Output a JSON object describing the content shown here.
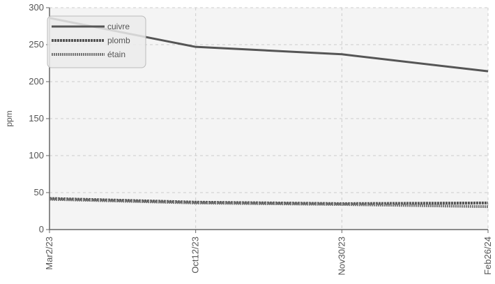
{
  "chart_data": {
    "type": "line",
    "title": "",
    "xlabel": "",
    "ylabel": "ppm",
    "ylim": [
      0,
      300
    ],
    "yticks": [
      "0",
      "50",
      "100",
      "150",
      "200",
      "250",
      "300"
    ],
    "categories": [
      "Mar2/23",
      "Oct12/23",
      "Nov30/23",
      "Feb26/24"
    ],
    "grid": true,
    "legend_position": "top-left",
    "series": [
      {
        "name": "cuivre",
        "values": [
          286,
          247,
          237,
          214
        ],
        "color": "#555555",
        "style": "solid"
      },
      {
        "name": "plomb",
        "values": [
          42,
          37,
          35,
          36
        ],
        "color": "#555555",
        "style": "dashed"
      },
      {
        "name": "étain",
        "values": [
          41,
          36,
          34,
          31
        ],
        "color": "#777777",
        "style": "dotted"
      }
    ]
  }
}
